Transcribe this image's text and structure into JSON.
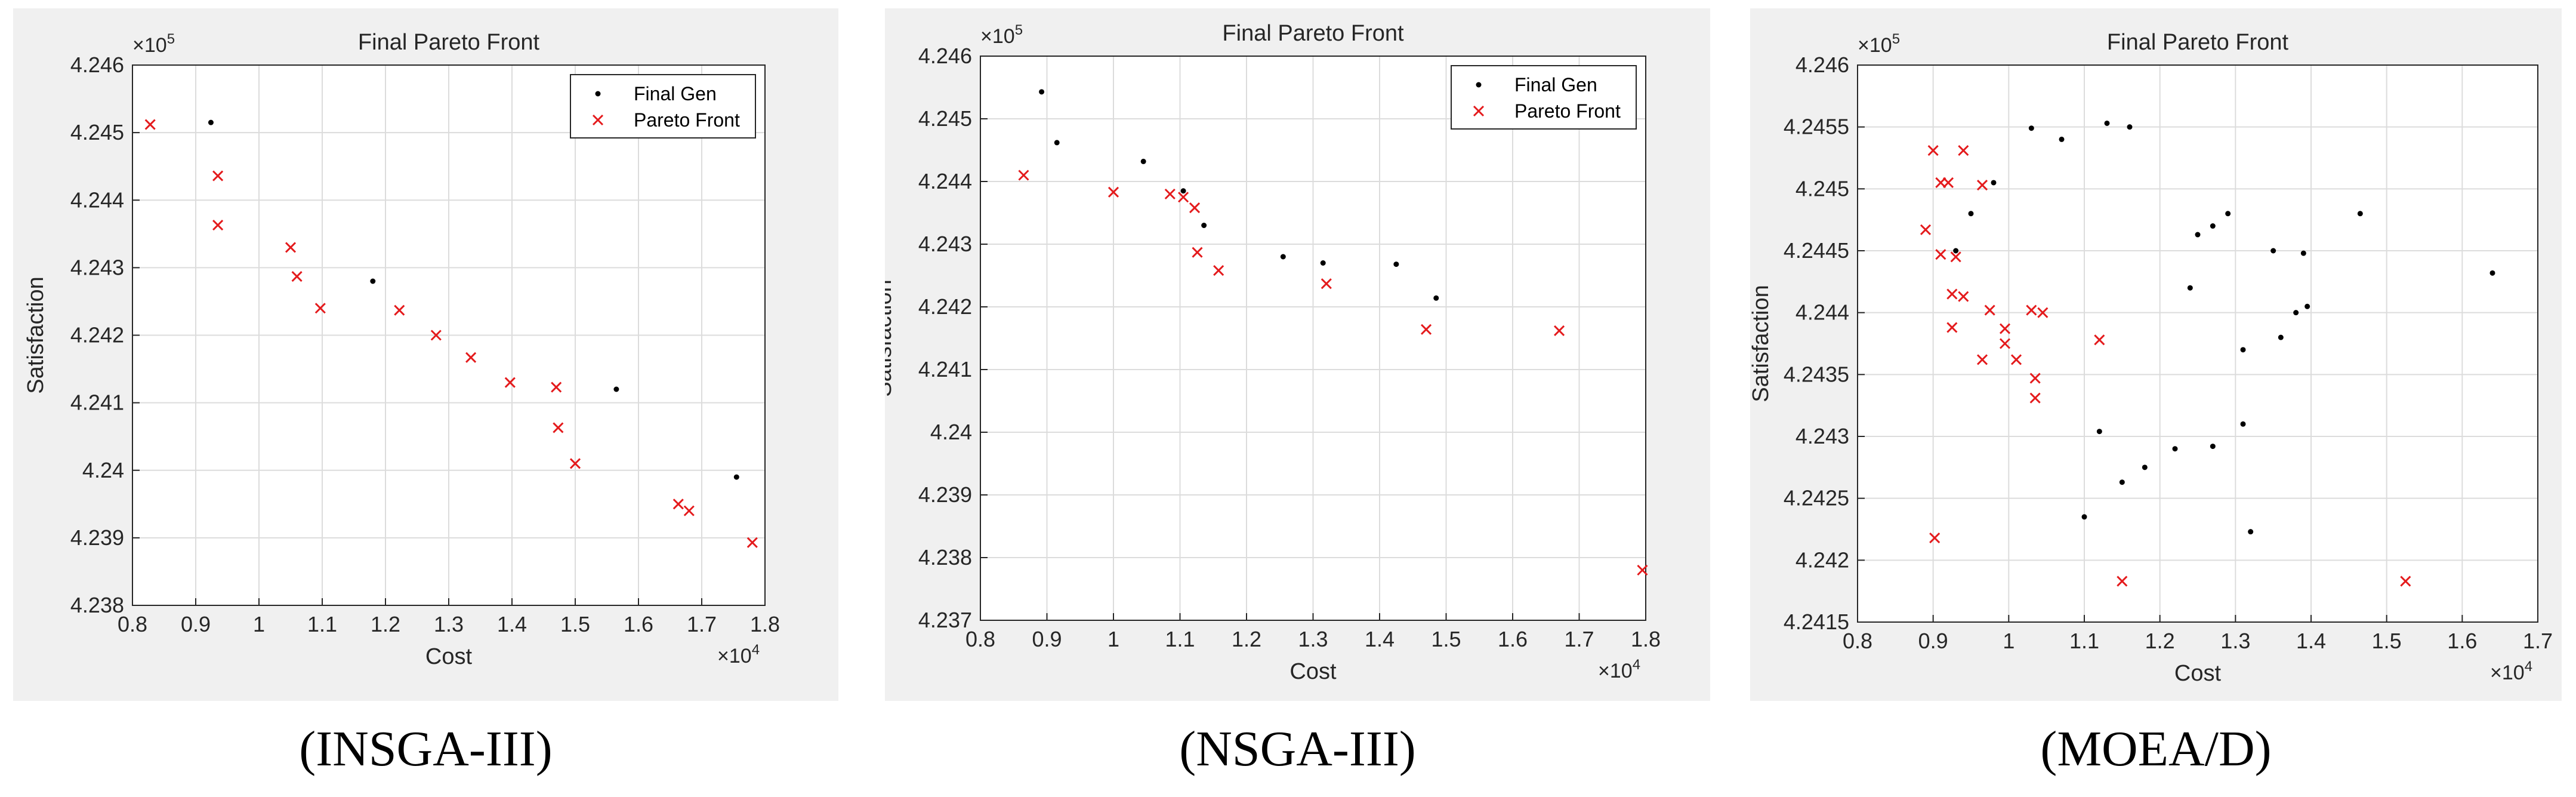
{
  "chart_data": [
    {
      "type": "scatter",
      "title": "Final Pareto Front",
      "xlabel": "Cost",
      "ylabel": "Satisfaction",
      "x_multiplier": "×10",
      "x_multiplier_exp": "4",
      "y_multiplier": "×10",
      "y_multiplier_exp": "5",
      "xlim": [
        0.8,
        1.8
      ],
      "ylim": [
        4.238,
        4.246
      ],
      "xticks": [
        "0.8",
        "0.9",
        "1",
        "1.1",
        "1.2",
        "1.3",
        "1.4",
        "1.5",
        "1.6",
        "1.7",
        "1.8"
      ],
      "yticks": [
        "4.238",
        "4.239",
        "4.24",
        "4.241",
        "4.242",
        "4.243",
        "4.244",
        "4.245",
        "4.246"
      ],
      "grid": true,
      "legend_position": "top-right",
      "caption": "(INSGA-III)",
      "series": [
        {
          "name": "Final Gen",
          "marker": "dot",
          "color": "#000000",
          "points": [
            [
              0.924,
              4.24515
            ],
            [
              1.18,
              4.2428
            ],
            [
              1.565,
              4.2412
            ],
            [
              1.755,
              4.2399
            ]
          ]
        },
        {
          "name": "Pareto Front",
          "marker": "x",
          "color": "#e41a1c",
          "points": [
            [
              0.828,
              4.24512
            ],
            [
              0.935,
              4.24436
            ],
            [
              0.935,
              4.24363
            ],
            [
              1.05,
              4.2433
            ],
            [
              1.06,
              4.24287
            ],
            [
              1.097,
              4.2424
            ],
            [
              1.222,
              4.24237
            ],
            [
              1.28,
              4.242
            ],
            [
              1.335,
              4.24167
            ],
            [
              1.397,
              4.2413
            ],
            [
              1.47,
              4.24123
            ],
            [
              1.473,
              4.24063
            ],
            [
              1.5,
              4.2401
            ],
            [
              1.663,
              4.2395
            ],
            [
              1.68,
              4.2394
            ],
            [
              1.78,
              4.23893
            ]
          ]
        }
      ]
    },
    {
      "type": "scatter",
      "title": "Final Pareto Front",
      "xlabel": "Cost",
      "ylabel": "Satisfaction",
      "x_multiplier": "×10",
      "x_multiplier_exp": "4",
      "y_multiplier": "×10",
      "y_multiplier_exp": "5",
      "xlim": [
        0.8,
        1.8
      ],
      "ylim": [
        4.237,
        4.246
      ],
      "xticks": [
        "0.8",
        "0.9",
        "1",
        "1.1",
        "1.2",
        "1.3",
        "1.4",
        "1.5",
        "1.6",
        "1.7",
        "1.8"
      ],
      "yticks": [
        "4.237",
        "4.238",
        "4.239",
        "4.24",
        "4.241",
        "4.242",
        "4.243",
        "4.244",
        "4.245",
        "4.246"
      ],
      "grid": true,
      "legend_position": "top-right",
      "caption": "(NSGA-III)",
      "series": [
        {
          "name": "Final Gen",
          "marker": "dot",
          "color": "#000000",
          "points": [
            [
              0.892,
              4.24543
            ],
            [
              0.915,
              4.24462
            ],
            [
              1.045,
              4.24432
            ],
            [
              1.105,
              4.24385
            ],
            [
              1.136,
              4.2433
            ],
            [
              1.255,
              4.2428
            ],
            [
              1.315,
              4.2427
            ],
            [
              1.425,
              4.24268
            ],
            [
              1.485,
              4.24214
            ]
          ]
        },
        {
          "name": "Pareto Front",
          "marker": "x",
          "color": "#e41a1c",
          "points": [
            [
              0.865,
              4.2441
            ],
            [
              1.0,
              4.24383
            ],
            [
              1.085,
              4.2438
            ],
            [
              1.105,
              4.24375
            ],
            [
              1.122,
              4.24358
            ],
            [
              1.126,
              4.24287
            ],
            [
              1.158,
              4.24258
            ],
            [
              1.32,
              4.24237
            ],
            [
              1.47,
              4.24164
            ],
            [
              1.67,
              4.24162
            ],
            [
              1.795,
              4.2378
            ]
          ]
        }
      ]
    },
    {
      "type": "scatter",
      "title": "Final Pareto Front",
      "xlabel": "Cost",
      "ylabel": "Satisfaction",
      "x_multiplier": "×10",
      "x_multiplier_exp": "4",
      "y_multiplier": "×10",
      "y_multiplier_exp": "5",
      "xlim": [
        0.8,
        1.7
      ],
      "ylim": [
        4.2415,
        4.246
      ],
      "xticks": [
        "0.8",
        "0.9",
        "1",
        "1.1",
        "1.2",
        "1.3",
        "1.4",
        "1.5",
        "1.6",
        "1.7"
      ],
      "yticks": [
        "4.2415",
        "4.242",
        "4.2425",
        "4.243",
        "4.2435",
        "4.244",
        "4.2445",
        "4.245",
        "4.2455",
        "4.246"
      ],
      "grid": true,
      "legend_position": "none",
      "caption": "(MOEA/D)",
      "series": [
        {
          "name": "Final Gen",
          "marker": "dot",
          "color": "#000000",
          "points": [
            [
              1.1,
              4.24235
            ],
            [
              1.32,
              4.24223
            ],
            [
              1.465,
              4.2448
            ],
            [
              1.64,
              4.24432
            ],
            [
              1.27,
              4.24292
            ],
            [
              1.22,
              4.2429
            ],
            [
              1.12,
              4.24304
            ],
            [
              1.29,
              4.2448
            ],
            [
              1.35,
              4.2445
            ],
            [
              1.39,
              4.24448
            ],
            [
              1.36,
              4.2438
            ],
            [
              1.38,
              4.244
            ],
            [
              1.395,
              4.24405
            ],
            [
              1.31,
              4.2431
            ],
            [
              1.15,
              4.24263
            ],
            [
              1.18,
              4.24275
            ],
            [
              1.16,
              4.2455
            ],
            [
              1.13,
              4.24553
            ],
            [
              1.07,
              4.2454
            ],
            [
              1.03,
              4.24549
            ],
            [
              0.95,
              4.2448
            ],
            [
              0.98,
              4.24505
            ],
            [
              0.93,
              4.2445
            ],
            [
              1.27,
              4.2447
            ],
            [
              1.25,
              4.24463
            ],
            [
              1.24,
              4.2442
            ],
            [
              1.31,
              4.2437
            ]
          ]
        },
        {
          "name": "Pareto Front",
          "marker": "x",
          "color": "#e41a1c",
          "points": [
            [
              0.902,
              4.24218
            ],
            [
              0.89,
              4.24467
            ],
            [
              0.9,
              4.24531
            ],
            [
              0.91,
              4.24505
            ],
            [
              0.92,
              4.24505
            ],
            [
              0.94,
              4.24531
            ],
            [
              0.965,
              4.24503
            ],
            [
              0.91,
              4.24447
            ],
            [
              0.93,
              4.24445
            ],
            [
              0.925,
              4.24415
            ],
            [
              0.94,
              4.24413
            ],
            [
              0.925,
              4.24388
            ],
            [
              0.965,
              4.24362
            ],
            [
              0.975,
              4.24402
            ],
            [
              0.995,
              4.24387
            ],
            [
              0.995,
              4.24375
            ],
            [
              1.01,
              4.24362
            ],
            [
              1.035,
              4.24347
            ],
            [
              1.035,
              4.24331
            ],
            [
              1.03,
              4.24402
            ],
            [
              1.045,
              4.244
            ],
            [
              1.12,
              4.24378
            ],
            [
              1.15,
              4.24183
            ],
            [
              1.525,
              4.24183
            ]
          ]
        }
      ]
    }
  ]
}
